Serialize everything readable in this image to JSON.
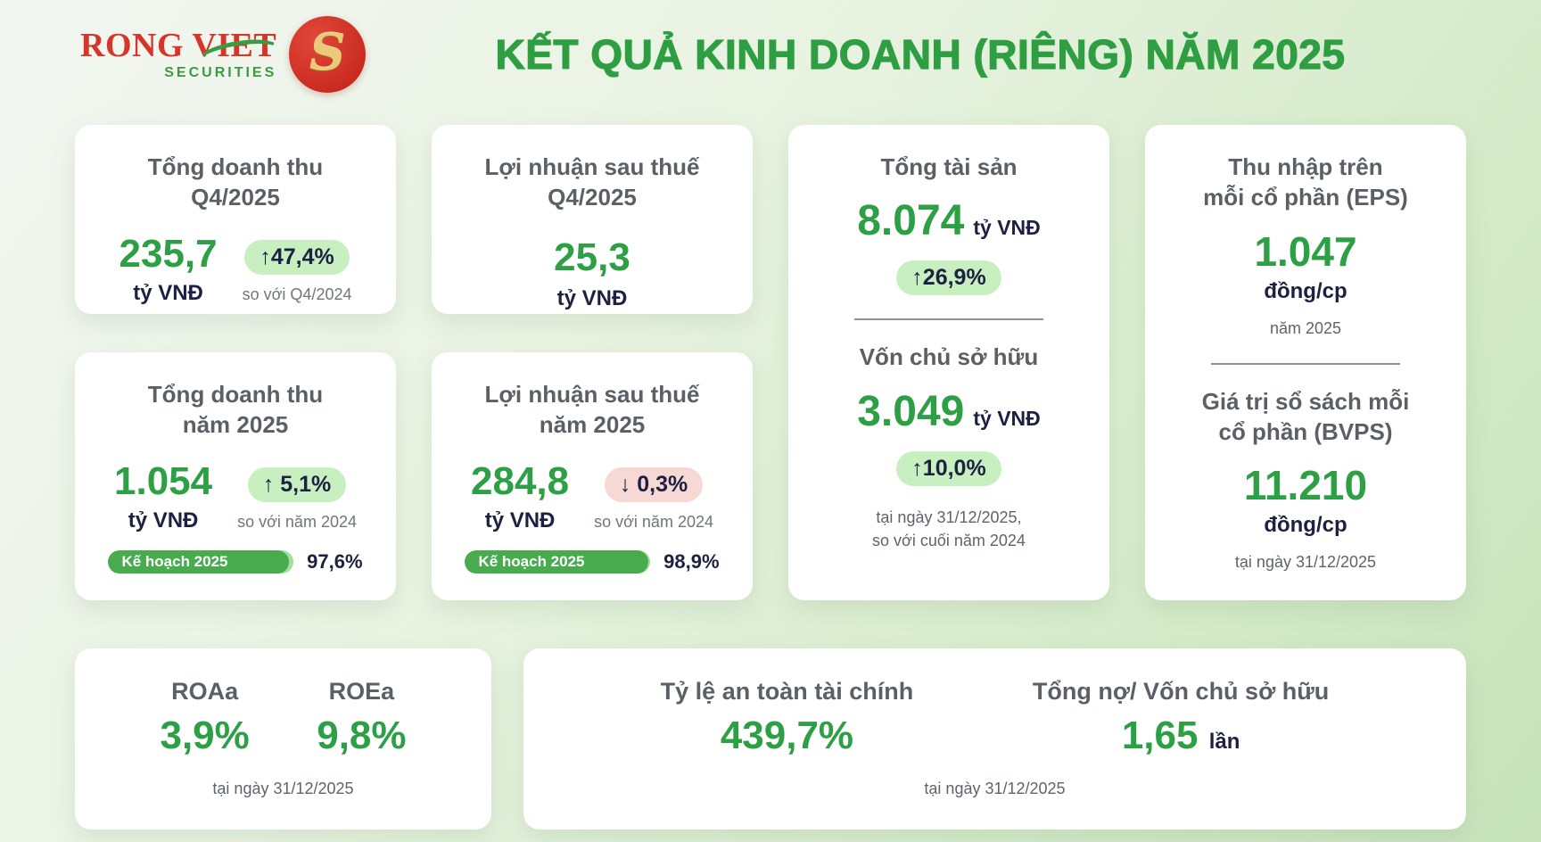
{
  "header": {
    "logo": {
      "name": "RONG VIET",
      "sub": "SECURITIES",
      "dragon_glyph": "S"
    },
    "title": "KẾT QUẢ KINH DOANH (RIÊNG) NĂM 2025"
  },
  "cards": {
    "revenue_q4": {
      "title_line1": "Tổng doanh thu",
      "title_line2": "Q4/2025",
      "value": "235,7",
      "unit": "tỷ VNĐ",
      "badge": "↑47,4%",
      "compare": "so với Q4/2024"
    },
    "profit_q4": {
      "title_line1": "Lợi nhuận sau thuế",
      "title_line2": "Q4/2025",
      "value": "25,3",
      "unit": "tỷ VNĐ"
    },
    "assets": {
      "title": "Tổng tài sản",
      "value": "8.074",
      "unit": "tỷ VNĐ",
      "badge": "↑26,9%"
    },
    "equity": {
      "title": "Vốn chủ sở hữu",
      "value": "3.049",
      "unit": "tỷ VNĐ",
      "badge": "↑10,0%",
      "note_line1": "tại ngày 31/12/2025,",
      "note_line2": "so với cuối năm 2024"
    },
    "eps": {
      "title_line1": "Thu nhập trên",
      "title_line2": "mỗi cổ phần (EPS)",
      "value": "1.047",
      "unit": "đồng/cp",
      "note": "năm 2025"
    },
    "bvps": {
      "title_line1": "Giá trị sổ sách mỗi",
      "title_line2": "cổ phần (BVPS)",
      "value": "11.210",
      "unit": "đồng/cp",
      "note": "tại ngày 31/12/2025"
    },
    "revenue_year": {
      "title_line1": "Tổng doanh thu",
      "title_line2": "năm 2025",
      "value": "1.054",
      "unit": "tỷ VNĐ",
      "badge": "↑ 5,1%",
      "compare": "so với năm 2024",
      "plan_label": "Kế hoạch 2025",
      "plan_percent_label": "97,6%",
      "plan_percent": 97.6
    },
    "profit_year": {
      "title_line1": "Lợi nhuận sau thuế",
      "title_line2": "năm 2025",
      "value": "284,8",
      "unit": "tỷ VNĐ",
      "badge": "↓ 0,3%",
      "compare": "so với năm 2024",
      "plan_label": "Kế hoạch 2025",
      "plan_percent_label": "98,9%",
      "plan_percent": 98.9
    },
    "ratios": {
      "roa_label": "ROAa",
      "roa_value": "3,9%",
      "roe_label": "ROEa",
      "roe_value": "9,8%",
      "note": "tại ngày 31/12/2025"
    },
    "safety": {
      "car_label": "Tỷ lệ an toàn tài chính",
      "car_value": "439,7%",
      "leverage_label": "Tổng nợ/ Vốn chủ sở hữu",
      "leverage_value": "1,65",
      "leverage_unit": "lần",
      "note": "tại ngày 31/12/2025"
    }
  },
  "colors": {
    "accent_green": "#2da046",
    "title_green": "#2f9e43",
    "badge_green_bg": "#c8efc0",
    "badge_red_bg": "#f6d8d4",
    "dark_navy": "#1c2142",
    "gray_text": "#5b6066",
    "logo_red": "#d5352b",
    "logo_green": "#3a9b42",
    "bar_track": "#a6dd9d",
    "bar_fill": "#48ac4f"
  },
  "chart_data": {
    "type": "table",
    "title": "KẾT QUẢ KINH DOANH (RIÊNG) NĂM 2025",
    "metrics": [
      {
        "label": "Tổng doanh thu Q4/2025",
        "value": 235.7,
        "unit": "tỷ VNĐ",
        "change": "+47,4% so với Q4/2024"
      },
      {
        "label": "Lợi nhuận sau thuế Q4/2025",
        "value": 25.3,
        "unit": "tỷ VNĐ"
      },
      {
        "label": "Tổng doanh thu năm 2025",
        "value": 1054,
        "unit": "tỷ VNĐ",
        "change": "+5,1% so với năm 2024",
        "plan_completion_pct": 97.6
      },
      {
        "label": "Lợi nhuận sau thuế năm 2025",
        "value": 284.8,
        "unit": "tỷ VNĐ",
        "change": "-0,3% so với năm 2024",
        "plan_completion_pct": 98.9
      },
      {
        "label": "Tổng tài sản",
        "value": 8074,
        "unit": "tỷ VNĐ",
        "change": "+26,9%",
        "as_of": "31/12/2025"
      },
      {
        "label": "Vốn chủ sở hữu",
        "value": 3049,
        "unit": "tỷ VNĐ",
        "change": "+10,0%",
        "as_of": "31/12/2025"
      },
      {
        "label": "Thu nhập trên mỗi cổ phần (EPS)",
        "value": 1047,
        "unit": "đồng/cp",
        "period": "năm 2025"
      },
      {
        "label": "Giá trị sổ sách mỗi cổ phần (BVPS)",
        "value": 11210,
        "unit": "đồng/cp",
        "as_of": "31/12/2025"
      },
      {
        "label": "ROAa",
        "value": 3.9,
        "unit": "%",
        "as_of": "31/12/2025"
      },
      {
        "label": "ROEa",
        "value": 9.8,
        "unit": "%",
        "as_of": "31/12/2025"
      },
      {
        "label": "Tỷ lệ an toàn tài chính",
        "value": 439.7,
        "unit": "%",
        "as_of": "31/12/2025"
      },
      {
        "label": "Tổng nợ/ Vốn chủ sở hữu",
        "value": 1.65,
        "unit": "lần",
        "as_of": "31/12/2025"
      }
    ]
  }
}
